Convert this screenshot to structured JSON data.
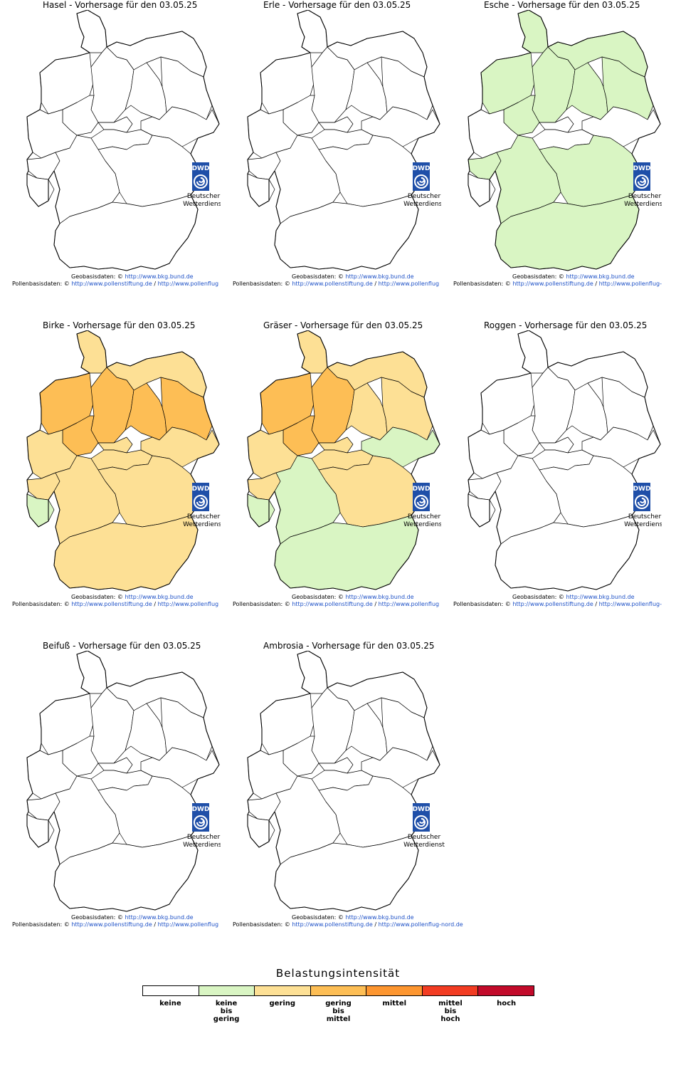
{
  "forecast_date": "03.05.25",
  "panels": [
    {
      "title": "Hasel - Vorhersage für den 03.05.25",
      "fill": {},
      "pollen_tail": "http://www.pollenflug"
    },
    {
      "title": "Erle - Vorhersage für den 03.05.25",
      "fill": {},
      "pollen_tail": "http://www.pollenflug"
    },
    {
      "title": "Esche - Vorhersage für den 03.05.25",
      "fill": {
        "r1": 1,
        "r2": 1,
        "r3": 1,
        "r4": 1,
        "r5": 1,
        "r6": 1,
        "r7": 1,
        "r9": 1,
        "r14": 1,
        "r15": 1,
        "r16": 1
      },
      "pollen_tail": "http://www.pollenflug-nord"
    },
    {
      "title": "Birke - Vorhersage für den 03.05.25",
      "fill": {
        "r1": 2,
        "r2": 2,
        "r3": 3,
        "r4": 3,
        "r5": 3,
        "r6": 3,
        "r7": 3,
        "r8": 2,
        "r9": 2,
        "r10": 1,
        "r11": 2,
        "r12": 2,
        "r13": 2,
        "r14": 2,
        "r15": 2,
        "r16": 2
      },
      "pollen_tail": "http://www.pollenflug"
    },
    {
      "title": "Gräser - Vorhersage für den 03.05.25",
      "fill": {
        "r1": 2,
        "r2": 2,
        "r3": 3,
        "r4": 3,
        "r5": 2,
        "r6": 2,
        "r7": 3,
        "r8": 2,
        "r9": 2,
        "r10": 1,
        "r11": 2,
        "r12": 2,
        "r13": 1,
        "r14": 2,
        "r15": 1,
        "r16": 1
      },
      "pollen_tail": "http://www.pollenflug"
    },
    {
      "title": "Roggen - Vorhersage für den 03.05.25",
      "fill": {},
      "pollen_tail": "http://www.pollenflug-nord"
    },
    {
      "title": "Beifuß - Vorhersage für den 03.05.25",
      "fill": {},
      "pollen_tail": "http://www.pollenflug"
    },
    {
      "title": "Ambrosia - Vorhersage für den 03.05.25",
      "fill": {},
      "pollen_tail": "http://www.pollenflug-nord.de"
    }
  ],
  "logo": {
    "abbr": "DWD",
    "line1": "Deutscher",
    "line2": "Wetterdienst"
  },
  "credits": {
    "geo_label": "Geobasisdaten:",
    "geo_symbol": "©",
    "geo_link": "http://www.bkg.bund.de",
    "pollen_label": "Pollenbasisdaten:",
    "pollen_symbol": "©",
    "pollen_link1": "http://www.pollenstiftung.de",
    "pollen_sep": "/"
  },
  "legend": {
    "title": "Belastungsintensität",
    "levels": [
      {
        "label": "keine",
        "color": "#ffffff"
      },
      {
        "label": "keine\nbis\ngering",
        "color": "#d9f5c3"
      },
      {
        "label": "gering",
        "color": "#fde095"
      },
      {
        "label": "gering\nbis\nmittel",
        "color": "#fdbe55"
      },
      {
        "label": "mittel",
        "color": "#fd9630"
      },
      {
        "label": "mittel\nbis\nhoch",
        "color": "#f23c22"
      },
      {
        "label": "hoch",
        "color": "#c20a2a"
      }
    ]
  }
}
